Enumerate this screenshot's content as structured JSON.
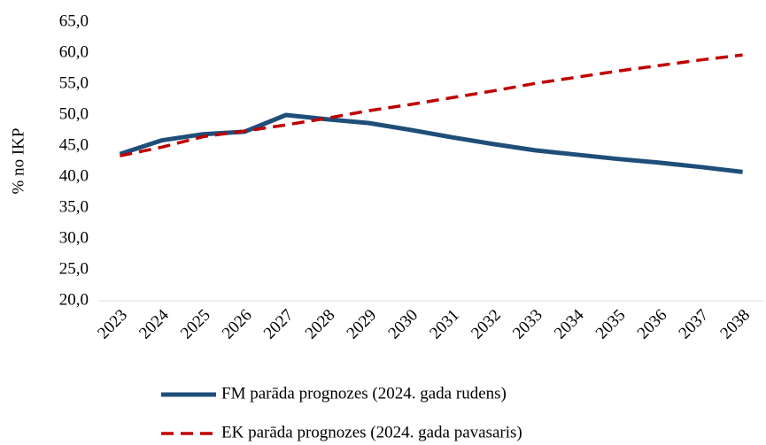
{
  "chart_data": {
    "type": "line",
    "y_label": "% no IKP",
    "categories": [
      "2023",
      "2024",
      "2025",
      "2026",
      "2027",
      "2028",
      "2029",
      "2030",
      "2031",
      "2032",
      "2033",
      "2034",
      "2035",
      "2036",
      "2037",
      "2038"
    ],
    "series": [
      {
        "name": "FM parāda prognozes (2024. gada rudens)",
        "color": "#1f4e79",
        "dash": false,
        "values": [
          43.7,
          45.9,
          46.9,
          47.3,
          50.0,
          49.3,
          48.7,
          47.6,
          46.4,
          45.3,
          44.3,
          43.6,
          42.9,
          42.3,
          41.6,
          40.8
        ]
      },
      {
        "name": "EK parāda prognozes (2024. gada pavasaris)",
        "color": "#c00000",
        "dash": true,
        "values": [
          43.4,
          44.8,
          46.5,
          47.4,
          48.4,
          49.5,
          50.7,
          51.7,
          52.8,
          53.9,
          55.1,
          56.1,
          57.1,
          58.0,
          58.9,
          59.7
        ]
      }
    ],
    "ylim": [
      20,
      65
    ],
    "yticks": [
      {
        "value": 20,
        "label": "20,0"
      },
      {
        "value": 25,
        "label": "25,0"
      },
      {
        "value": 30,
        "label": "30,0"
      },
      {
        "value": 35,
        "label": "35,0"
      },
      {
        "value": 40,
        "label": "40,0"
      },
      {
        "value": 45,
        "label": "45,0"
      },
      {
        "value": 50,
        "label": "50,0"
      },
      {
        "value": 55,
        "label": "55,0"
      },
      {
        "value": 60,
        "label": "60,0"
      },
      {
        "value": 65,
        "label": "65,0"
      }
    ],
    "grid": false,
    "legend": "bottom"
  }
}
